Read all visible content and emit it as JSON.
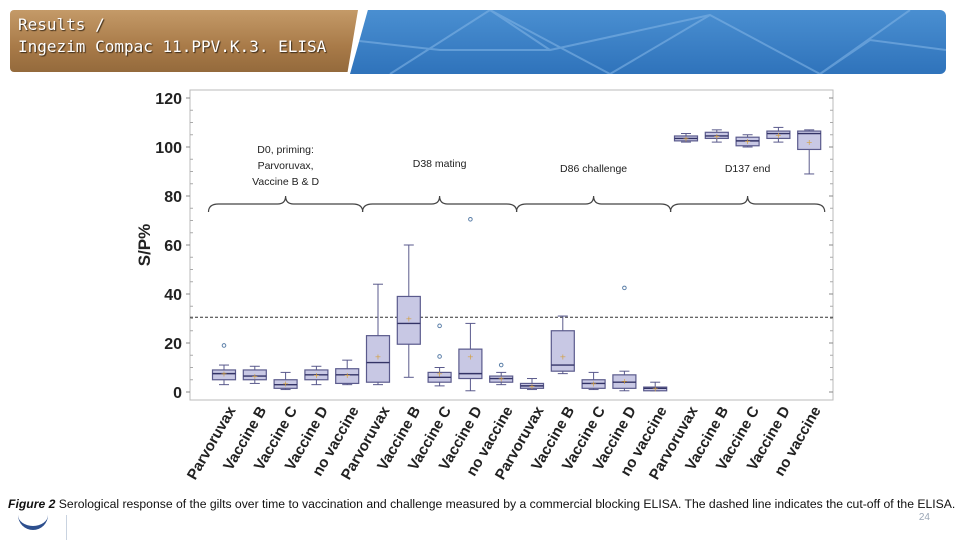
{
  "header": {
    "title_line1": "Results /",
    "title_line2": " Ingezim Compac 11.PPV.K.3. ELISA"
  },
  "caption": {
    "figure_label": "Figure 2",
    "text": " Serological response of the gilts over time to vaccination and challenge measured by a commercial blocking ELISA. The dashed line indicates the cut-off of the ELISA."
  },
  "page_number": "24",
  "colors": {
    "title_bar": "#a87a48",
    "header_blue": "#2f73bb",
    "box_fill": "#c8c8e4",
    "box_stroke": "#5a5a8c",
    "mean_marker": "#d4a040",
    "outlier": "#5b7fa8"
  },
  "chart_data": {
    "type": "boxplot",
    "ylabel": "S/P%",
    "ylim": [
      0,
      120
    ],
    "yticks": [
      0,
      20,
      40,
      60,
      80,
      100,
      120
    ],
    "cutoff": 30.5,
    "group_labels": [
      {
        "lines": [
          "D0, priming:",
          "Parvoruvax,",
          "Vaccine B & D"
        ],
        "from": 0,
        "to": 4
      },
      {
        "lines": [
          "D38 mating"
        ],
        "from": 5,
        "to": 9
      },
      {
        "lines": [
          "D86 challenge"
        ],
        "from": 10,
        "to": 14
      },
      {
        "lines": [
          "D137 end"
        ],
        "from": 15,
        "to": 19
      }
    ],
    "categories": [
      "Parvoruvax",
      "Vaccine B",
      "Vaccine C",
      "Vaccine D",
      "no vaccine",
      "Parvoruvax",
      "Vaccine B",
      "Vaccine C",
      "Vaccine D",
      "no vaccine",
      "Parvoruvax",
      "Vaccine B",
      "Vaccine C",
      "Vaccine D",
      "no vaccine",
      "Parvoruvax",
      "Vaccine B",
      "Vaccine C",
      "Vaccine D",
      "no vaccine"
    ],
    "boxes": [
      {
        "min": 3,
        "q1": 5,
        "median": 7.5,
        "q3": 9,
        "max": 11,
        "mean": 7.5,
        "outliers": [
          19
        ]
      },
      {
        "min": 3.5,
        "q1": 5,
        "median": 6.5,
        "q3": 9,
        "max": 10.5,
        "mean": 6.5,
        "outliers": []
      },
      {
        "min": 1,
        "q1": 1.5,
        "median": 3,
        "q3": 5,
        "max": 8,
        "mean": 3.5,
        "outliers": []
      },
      {
        "min": 3,
        "q1": 5,
        "median": 7,
        "q3": 9,
        "max": 10.5,
        "mean": 7,
        "outliers": []
      },
      {
        "min": 3,
        "q1": 3.5,
        "median": 7,
        "q3": 9.5,
        "max": 13,
        "mean": 7,
        "outliers": []
      },
      {
        "min": 3,
        "q1": 4,
        "median": 12,
        "q3": 23,
        "max": 44,
        "mean": 14.5,
        "outliers": []
      },
      {
        "min": 6,
        "q1": 19.5,
        "median": 28,
        "q3": 39,
        "max": 60,
        "mean": 30,
        "outliers": []
      },
      {
        "min": 2.5,
        "q1": 4,
        "median": 6,
        "q3": 8,
        "max": 10,
        "mean": 7.5,
        "outliers": [
          27,
          14.5
        ]
      },
      {
        "min": 0.5,
        "q1": 5.5,
        "median": 7.5,
        "q3": 17.5,
        "max": 28,
        "mean": 14.5,
        "outliers": [
          70.5
        ]
      },
      {
        "min": 3,
        "q1": 4,
        "median": 5.5,
        "q3": 6.5,
        "max": 8,
        "mean": 5.5,
        "outliers": [
          11
        ]
      },
      {
        "min": 1,
        "q1": 1.5,
        "median": 2.5,
        "q3": 3.5,
        "max": 5.5,
        "mean": 2.5,
        "outliers": []
      },
      {
        "min": 7.5,
        "q1": 8.5,
        "median": 11,
        "q3": 25,
        "max": 31,
        "mean": 14.5,
        "outliers": []
      },
      {
        "min": 1,
        "q1": 1.5,
        "median": 3.5,
        "q3": 5,
        "max": 8,
        "mean": 3.5,
        "outliers": []
      },
      {
        "min": 0.5,
        "q1": 1.5,
        "median": 4,
        "q3": 7,
        "max": 8.5,
        "mean": 4.5,
        "outliers": [
          42.5
        ]
      },
      {
        "min": 0.5,
        "q1": 0.5,
        "median": 1.5,
        "q3": 2,
        "max": 4,
        "mean": 1.5,
        "outliers": []
      },
      {
        "min": 102,
        "q1": 102.5,
        "median": 103.5,
        "q3": 104.5,
        "max": 105.5,
        "mean": 103.5,
        "outliers": []
      },
      {
        "min": 102,
        "q1": 103.5,
        "median": 104.5,
        "q3": 106,
        "max": 107,
        "mean": 104.5,
        "outliers": []
      },
      {
        "min": 100,
        "q1": 100.5,
        "median": 102.5,
        "q3": 104,
        "max": 105,
        "mean": 102.5,
        "outliers": []
      },
      {
        "min": 102,
        "q1": 103.5,
        "median": 105.5,
        "q3": 106.5,
        "max": 108,
        "mean": 105,
        "outliers": []
      },
      {
        "min": 89,
        "q1": 99,
        "median": 105.5,
        "q3": 106.5,
        "max": 107,
        "mean": 102,
        "outliers": []
      }
    ]
  }
}
